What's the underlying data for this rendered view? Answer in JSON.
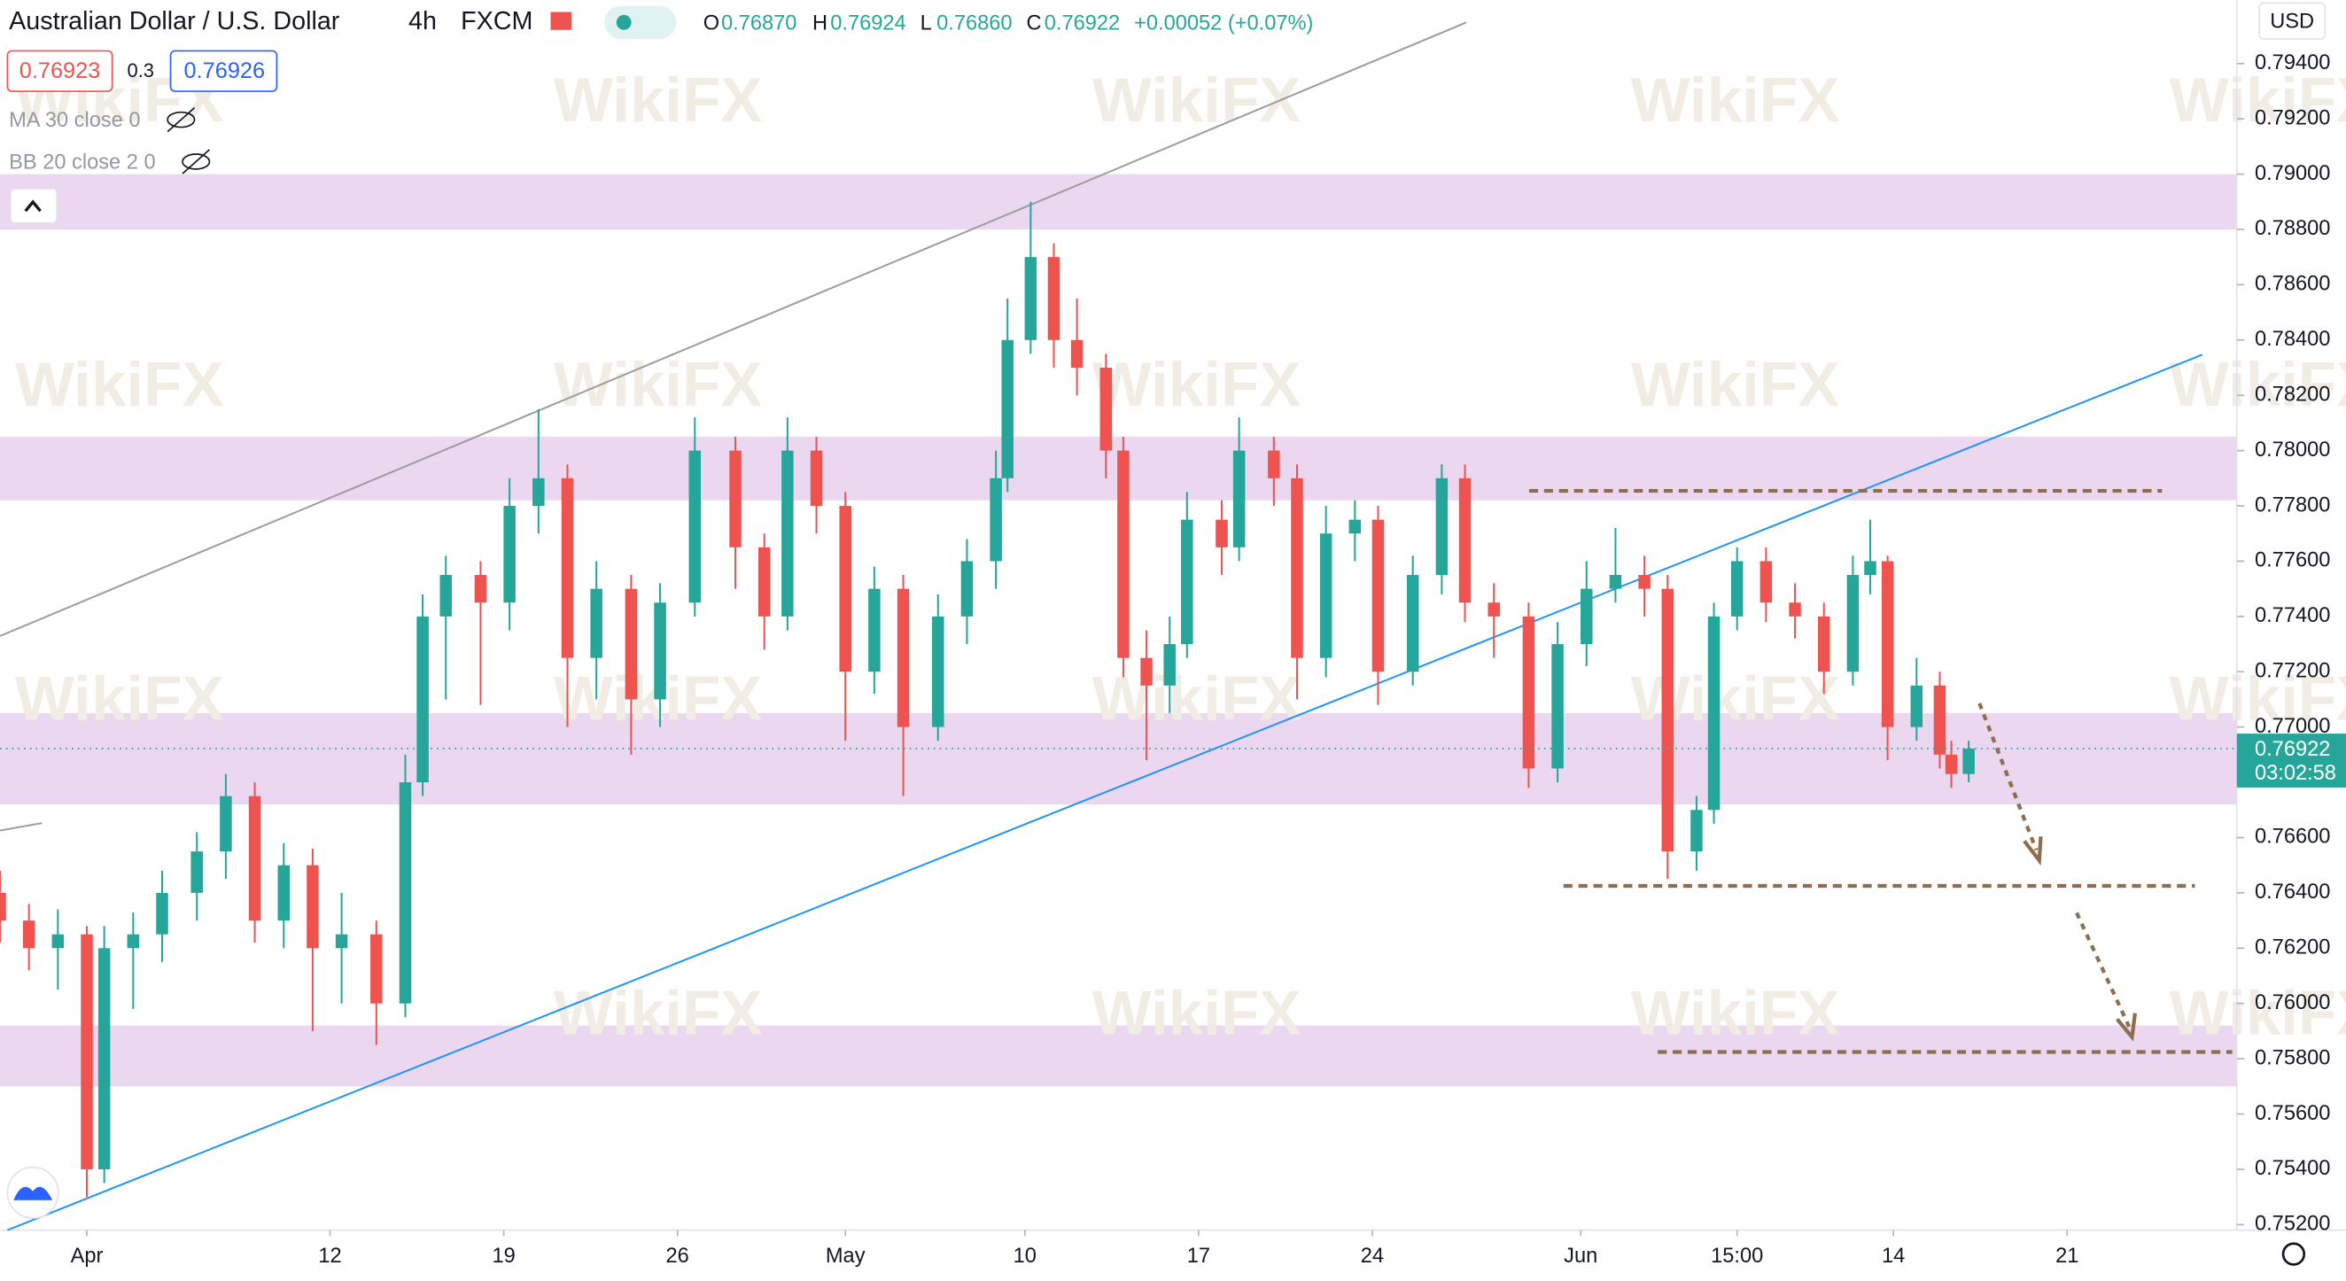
{
  "header": {
    "symbol": "Australian Dollar / U.S. Dollar",
    "interval": "4h",
    "exchange": "FXCM",
    "open_key": "O",
    "open": "0.76870",
    "high_key": "H",
    "high": "0.76924",
    "low_key": "L",
    "low": "0.76860",
    "close_key": "C",
    "close": "0.76922",
    "change": "+0.00052 (+0.07%)",
    "bid": "0.76923",
    "spread": "0.3",
    "ask": "0.76926",
    "indicator_1": "MA 30 close 0",
    "indicator_2": "BB 20 close 2 0",
    "currency": "USD",
    "last_price": "0.76922",
    "countdown": "03:02:58",
    "watermark": "WikiFX"
  },
  "chart_data": {
    "type": "candlestick",
    "xlim": [
      -15,
      371.3
    ],
    "xticks": [
      {
        "value": 0,
        "label": "Apr"
      },
      {
        "value": 42,
        "label": "12"
      },
      {
        "value": 72,
        "label": "19"
      },
      {
        "value": 102,
        "label": "26"
      },
      {
        "value": 131,
        "label": "May"
      },
      {
        "value": 162,
        "label": "10"
      },
      {
        "value": 192,
        "label": "17"
      },
      {
        "value": 222,
        "label": "24"
      },
      {
        "value": 258,
        "label": "Jun"
      },
      {
        "value": 285,
        "label": "15:00"
      },
      {
        "value": 312,
        "label": "14"
      },
      {
        "value": 342,
        "label": "21"
      }
    ],
    "ylim": [
      0.7518,
      0.7963
    ],
    "yticks": [
      {
        "value": 0.752,
        "label": "0.75200"
      },
      {
        "value": 0.754,
        "label": "0.75400"
      },
      {
        "value": 0.756,
        "label": "0.75600"
      },
      {
        "value": 0.758,
        "label": "0.75800"
      },
      {
        "value": 0.76,
        "label": "0.76000"
      },
      {
        "value": 0.762,
        "label": "0.76200"
      },
      {
        "value": 0.764,
        "label": "0.76400"
      },
      {
        "value": 0.766,
        "label": "0.76600"
      },
      {
        "value": 0.77,
        "label": "0.77000"
      },
      {
        "value": 0.772,
        "label": "0.77200"
      },
      {
        "value": 0.774,
        "label": "0.77400"
      },
      {
        "value": 0.776,
        "label": "0.77600"
      },
      {
        "value": 0.778,
        "label": "0.77800"
      },
      {
        "value": 0.78,
        "label": "0.78000"
      },
      {
        "value": 0.782,
        "label": "0.78200"
      },
      {
        "value": 0.784,
        "label": "0.78400"
      },
      {
        "value": 0.786,
        "label": "0.78600"
      },
      {
        "value": 0.788,
        "label": "0.78800"
      },
      {
        "value": 0.79,
        "label": "0.79000"
      },
      {
        "value": 0.792,
        "label": "0.79200"
      },
      {
        "value": 0.794,
        "label": "0.79400"
      }
    ],
    "up_color": "#26a69a",
    "down_color": "#ef5350",
    "zone_color": "#e9d3ee",
    "zones": [
      [
        0.788,
        0.79
      ],
      [
        0.7782,
        0.7805
      ],
      [
        0.7672,
        0.7705
      ],
      [
        0.757,
        0.7592
      ]
    ],
    "last_value": 0.76922,
    "candles": {
      "x": [
        -15,
        -10,
        -5,
        0,
        3,
        8,
        13,
        19,
        24,
        29,
        34,
        39,
        44,
        50,
        55,
        58,
        62,
        68,
        73,
        78,
        83,
        88,
        94,
        99,
        105,
        112,
        117,
        121,
        126,
        131,
        136,
        141,
        147,
        152,
        157,
        159,
        163,
        167,
        171,
        176,
        179,
        183,
        187,
        190,
        196,
        199,
        205,
        209,
        214,
        219,
        223,
        229,
        234,
        238,
        243,
        249,
        254,
        259,
        264,
        269,
        273,
        278,
        281,
        285,
        290,
        295,
        300,
        305,
        308,
        311,
        316,
        320,
        322,
        325
      ],
      "open": [
        0.764,
        0.763,
        0.762,
        0.7625,
        0.754,
        0.762,
        0.7625,
        0.764,
        0.7655,
        0.7675,
        0.763,
        0.765,
        0.762,
        0.7625,
        0.76,
        0.768,
        0.774,
        0.7755,
        0.7745,
        0.778,
        0.779,
        0.7725,
        0.775,
        0.771,
        0.7745,
        0.78,
        0.7765,
        0.774,
        0.78,
        0.778,
        0.772,
        0.775,
        0.77,
        0.774,
        0.776,
        0.779,
        0.784,
        0.787,
        0.784,
        0.783,
        0.78,
        0.7725,
        0.7715,
        0.773,
        0.7775,
        0.7765,
        0.78,
        0.779,
        0.7725,
        0.777,
        0.7775,
        0.772,
        0.7755,
        0.779,
        0.7745,
        0.774,
        0.7685,
        0.773,
        0.775,
        0.7755,
        0.775,
        0.7655,
        0.767,
        0.774,
        0.776,
        0.7745,
        0.774,
        0.772,
        0.7755,
        0.776,
        0.77,
        0.7715,
        0.769,
        0.7683
      ],
      "high": [
        0.7648,
        0.7636,
        0.7634,
        0.7628,
        0.7628,
        0.7633,
        0.7648,
        0.7662,
        0.7683,
        0.768,
        0.7658,
        0.7656,
        0.764,
        0.763,
        0.769,
        0.7748,
        0.7762,
        0.776,
        0.779,
        0.7815,
        0.7795,
        0.776,
        0.7755,
        0.7752,
        0.7812,
        0.7805,
        0.777,
        0.7812,
        0.7805,
        0.7785,
        0.7758,
        0.7755,
        0.7748,
        0.7768,
        0.78,
        0.7855,
        0.789,
        0.7875,
        0.7855,
        0.7835,
        0.7805,
        0.7735,
        0.774,
        0.7785,
        0.7782,
        0.7812,
        0.7805,
        0.7795,
        0.778,
        0.7782,
        0.778,
        0.7762,
        0.7795,
        0.7795,
        0.7752,
        0.7745,
        0.7738,
        0.776,
        0.7772,
        0.7762,
        0.7755,
        0.7675,
        0.7745,
        0.7765,
        0.7765,
        0.7752,
        0.7745,
        0.7762,
        0.7775,
        0.7762,
        0.7725,
        0.772,
        0.7695,
        0.7695
      ],
      "low": [
        0.7622,
        0.7612,
        0.7605,
        0.753,
        0.7535,
        0.7598,
        0.7615,
        0.763,
        0.7645,
        0.7622,
        0.762,
        0.759,
        0.76,
        0.7585,
        0.7595,
        0.7675,
        0.771,
        0.7708,
        0.7735,
        0.777,
        0.77,
        0.771,
        0.769,
        0.77,
        0.774,
        0.775,
        0.7728,
        0.7735,
        0.777,
        0.7695,
        0.7712,
        0.7675,
        0.7695,
        0.773,
        0.775,
        0.7785,
        0.7835,
        0.783,
        0.782,
        0.779,
        0.7718,
        0.7688,
        0.7705,
        0.7725,
        0.7755,
        0.776,
        0.778,
        0.771,
        0.7718,
        0.776,
        0.7708,
        0.7715,
        0.7748,
        0.7738,
        0.7725,
        0.7678,
        0.768,
        0.7722,
        0.7745,
        0.774,
        0.7645,
        0.7648,
        0.7665,
        0.7735,
        0.7738,
        0.7732,
        0.7712,
        0.7715,
        0.7748,
        0.7688,
        0.7695,
        0.7685,
        0.7678,
        0.768
      ],
      "close": [
        0.763,
        0.762,
        0.7625,
        0.754,
        0.762,
        0.7625,
        0.764,
        0.7655,
        0.7675,
        0.763,
        0.765,
        0.762,
        0.7625,
        0.76,
        0.768,
        0.774,
        0.7755,
        0.7745,
        0.778,
        0.779,
        0.7725,
        0.775,
        0.771,
        0.7745,
        0.78,
        0.7765,
        0.774,
        0.78,
        0.778,
        0.772,
        0.775,
        0.77,
        0.774,
        0.776,
        0.779,
        0.784,
        0.787,
        0.784,
        0.783,
        0.78,
        0.7725,
        0.7715,
        0.773,
        0.7775,
        0.7765,
        0.78,
        0.779,
        0.7725,
        0.777,
        0.7775,
        0.772,
        0.7755,
        0.779,
        0.7745,
        0.774,
        0.7685,
        0.773,
        0.775,
        0.7755,
        0.775,
        0.7655,
        0.767,
        0.774,
        0.776,
        0.7745,
        0.774,
        0.772,
        0.7755,
        0.776,
        0.77,
        0.7715,
        0.769,
        0.7683,
        0.76922
      ]
    }
  }
}
